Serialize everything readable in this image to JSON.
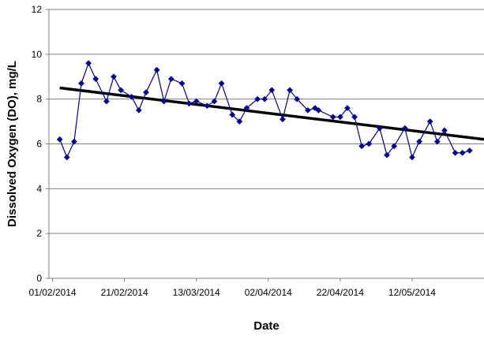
{
  "chart_data": {
    "type": "line",
    "xlabel": "Date",
    "ylabel": "Dissolved Oxygen (DO), mg/L",
    "ylim": [
      0,
      12
    ],
    "yticks": [
      0,
      2,
      4,
      6,
      8,
      10,
      12
    ],
    "xlim": [
      "2014-01-31",
      "2014-06-01"
    ],
    "xtick_labels": [
      "01/02/2014",
      "21/02/2014",
      "13/03/2014",
      "02/04/2014",
      "22/04/2014",
      "12/05/2014"
    ],
    "grid": "horizontal",
    "legend": "none",
    "series": [
      {
        "color": "#00008b",
        "marker": "diamond",
        "points": [
          [
            "2014-02-03",
            6.2
          ],
          [
            "2014-02-05",
            5.4
          ],
          [
            "2014-02-07",
            6.1
          ],
          [
            "2014-02-09",
            8.7
          ],
          [
            "2014-02-11",
            9.6
          ],
          [
            "2014-02-13",
            8.9
          ],
          [
            "2014-02-16",
            7.9
          ],
          [
            "2014-02-18",
            9.0
          ],
          [
            "2014-02-20",
            8.4
          ],
          [
            "2014-02-23",
            8.1
          ],
          [
            "2014-02-25",
            7.5
          ],
          [
            "2014-02-27",
            8.3
          ],
          [
            "2014-03-02",
            9.3
          ],
          [
            "2014-03-04",
            7.9
          ],
          [
            "2014-03-06",
            8.9
          ],
          [
            "2014-03-09",
            8.7
          ],
          [
            "2014-03-11",
            7.8
          ],
          [
            "2014-03-13",
            7.9
          ],
          [
            "2014-03-16",
            7.7
          ],
          [
            "2014-03-18",
            7.9
          ],
          [
            "2014-03-20",
            8.7
          ],
          [
            "2014-03-23",
            7.3
          ],
          [
            "2014-03-25",
            7.0
          ],
          [
            "2014-03-27",
            7.6
          ],
          [
            "2014-03-30",
            8.0
          ],
          [
            "2014-04-01",
            8.0
          ],
          [
            "2014-04-03",
            8.4
          ],
          [
            "2014-04-06",
            7.1
          ],
          [
            "2014-04-08",
            8.4
          ],
          [
            "2014-04-10",
            8.0
          ],
          [
            "2014-04-13",
            7.5
          ],
          [
            "2014-04-15",
            7.6
          ],
          [
            "2014-04-16",
            7.5
          ],
          [
            "2014-04-20",
            7.2
          ],
          [
            "2014-04-22",
            7.2
          ],
          [
            "2014-04-24",
            7.6
          ],
          [
            "2014-04-26",
            7.2
          ],
          [
            "2014-04-28",
            5.9
          ],
          [
            "2014-04-30",
            6.0
          ],
          [
            "2014-05-03",
            6.7
          ],
          [
            "2014-05-05",
            5.5
          ],
          [
            "2014-05-07",
            5.9
          ],
          [
            "2014-05-10",
            6.7
          ],
          [
            "2014-05-12",
            5.4
          ],
          [
            "2014-05-14",
            6.1
          ],
          [
            "2014-05-17",
            7.0
          ],
          [
            "2014-05-19",
            6.1
          ],
          [
            "2014-05-21",
            6.6
          ],
          [
            "2014-05-24",
            5.6
          ],
          [
            "2014-05-26",
            5.6
          ],
          [
            "2014-05-28",
            5.7
          ]
        ]
      }
    ],
    "trendline": {
      "color": "#000000",
      "points": [
        [
          "2014-02-03",
          8.5
        ],
        [
          "2014-06-01",
          6.2
        ]
      ]
    }
  }
}
